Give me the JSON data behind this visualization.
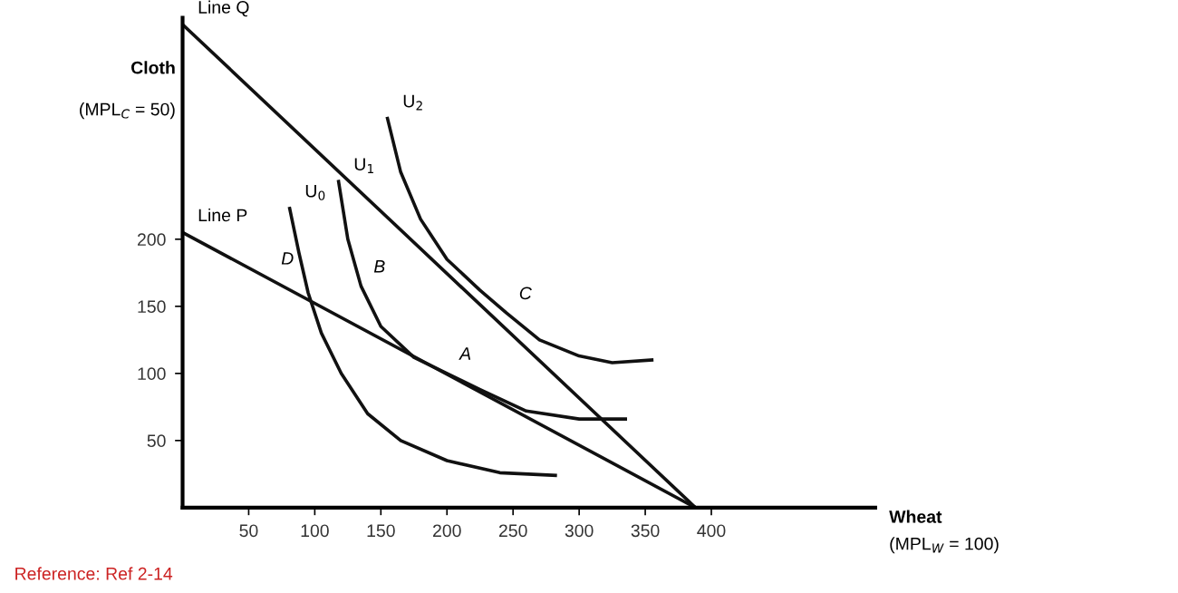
{
  "chart_data": {
    "type": "line",
    "xlabel": "Wheat\n(MPL$_{W}$ = 100)",
    "ylabel": "Cloth\n\n(MPL$_{C}$ = 50)",
    "xlim": [
      0,
      524
    ],
    "ylim": [
      0,
      365
    ],
    "xticks": [
      50,
      100,
      150,
      200,
      250,
      300,
      350,
      400
    ],
    "yticks": [
      50,
      100,
      150,
      200
    ],
    "grid": false,
    "legend": false,
    "marker": "none",
    "line_style": "solid",
    "series": [
      {
        "name": "Line Q",
        "color": "#111111",
        "x": [
          0,
          388
        ],
        "values": [
          360,
          0
        ]
      },
      {
        "name": "Line P",
        "color": "#111111",
        "x": [
          0,
          388
        ],
        "values": [
          205,
          0
        ]
      },
      {
        "name": "U$_{0}$",
        "color": "#111111",
        "x": [
          81,
          88,
          95,
          105,
          120,
          140,
          165,
          200,
          240,
          282
        ],
        "values": [
          223,
          190,
          160,
          130,
          100,
          70,
          50,
          35,
          26,
          24
        ]
      },
      {
        "name": "U$_{1}$",
        "color": "#111111",
        "x": [
          118,
          125,
          135,
          150,
          175,
          200,
          225,
          260,
          300,
          335
        ],
        "values": [
          243,
          200,
          165,
          135,
          112,
          100,
          88,
          72,
          66,
          66
        ]
      },
      {
        "name": "U$_{2}$",
        "color": "#111111",
        "x": [
          155,
          165,
          180,
          200,
          225,
          245,
          270,
          300,
          325,
          355
        ],
        "values": [
          290,
          250,
          215,
          185,
          162,
          145,
          125,
          113,
          108,
          110
        ]
      }
    ],
    "annotations": [
      {
        "text": "B",
        "x": 135,
        "y": 165
      },
      {
        "text": "C",
        "x": 245,
        "y": 145
      },
      {
        "text": "D",
        "x": 65,
        "y": 171
      },
      {
        "text": "A",
        "x": 200,
        "y": 100
      },
      "Reference: Ref 2-14"
    ]
  }
}
